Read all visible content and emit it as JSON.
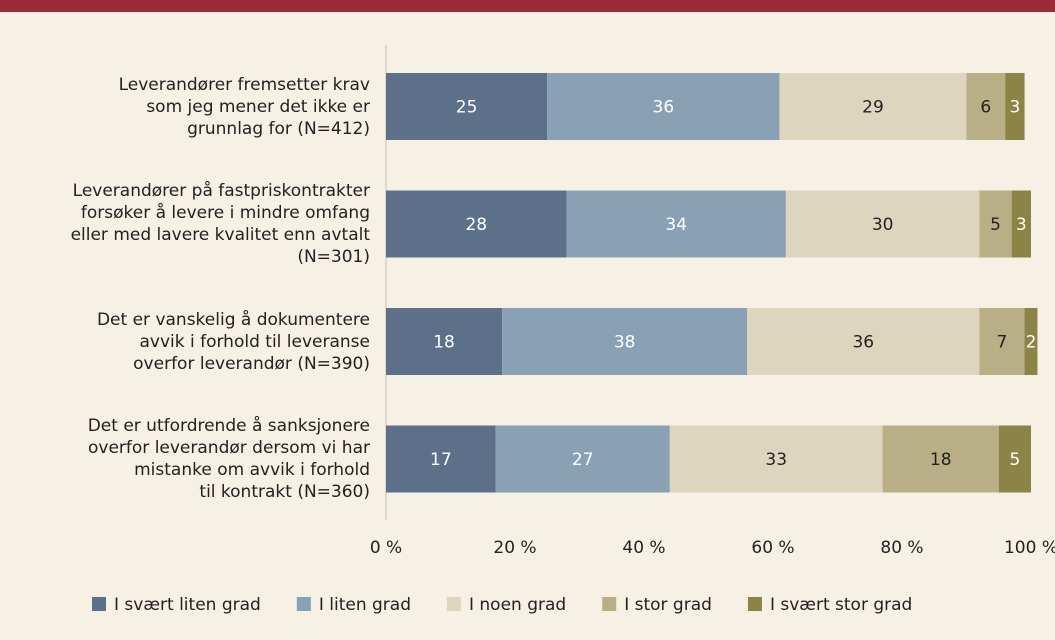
{
  "chart_data": {
    "type": "stacked_bar_horizontal",
    "categories": [
      "Leverandører fremsetter krav\nsom jeg mener det ikke er\ngrunnlag for (N=412)",
      "Leverandører på fastpriskontrakter\nforsøker å levere i mindre omfang\neller med lavere kvalitet enn avtalt\n(N=301)",
      "Det er vanskelig å dokumentere\navvik i forhold til leveranse\noverfor leverandør (N=390)",
      "Det er utfordrende å sanksjonere\noverfor leverandør dersom vi har\nmistanke om avvik i forhold\ntil kontrakt (N=360)"
    ],
    "series": [
      {
        "name": "I svært liten grad",
        "color": "#5c7189",
        "values": [
          25,
          28,
          18,
          17
        ]
      },
      {
        "name": "I liten grad",
        "color": "#8aa0b5",
        "values": [
          36,
          34,
          38,
          27
        ]
      },
      {
        "name": "I noen grad",
        "color": "#ded5be",
        "values": [
          29,
          30,
          36,
          33
        ]
      },
      {
        "name": "I stor grad",
        "color": "#b8af86",
        "values": [
          6,
          5,
          7,
          18
        ]
      },
      {
        "name": "I svært stor grad",
        "color": "#8c8446",
        "values": [
          3,
          3,
          2,
          5
        ]
      }
    ],
    "xlim": [
      0,
      100
    ],
    "xticks": [
      {
        "value": 0,
        "label": "0 %"
      },
      {
        "value": 20,
        "label": "20 %"
      },
      {
        "value": 40,
        "label": "40 %"
      },
      {
        "value": 60,
        "label": "60 %"
      },
      {
        "value": 80,
        "label": "80 %"
      },
      {
        "value": 100,
        "label": "100 %"
      }
    ],
    "legend": "bottom"
  }
}
